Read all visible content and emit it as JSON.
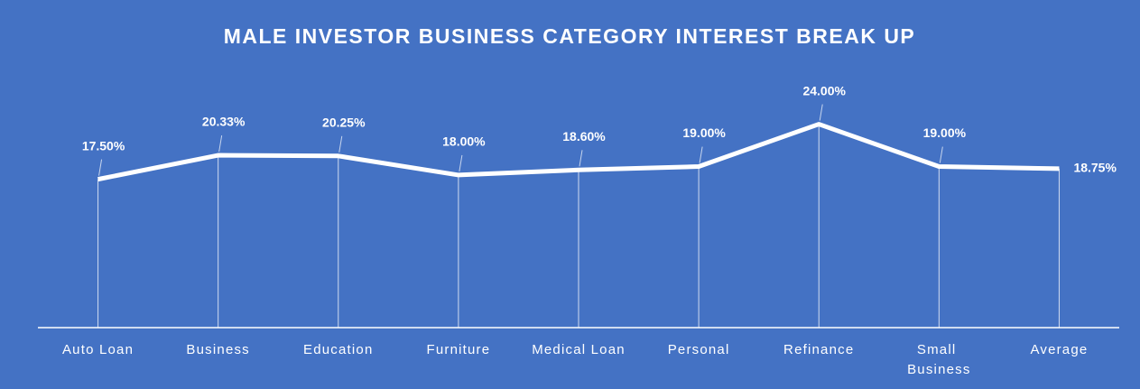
{
  "chart_data": {
    "type": "line",
    "title": "MALE INVESTOR BUSINESS CATEGORY INTEREST BREAK UP",
    "categories": [
      "Auto Loan",
      "Business",
      "Education",
      "Furniture",
      "Medical Loan",
      "Personal",
      "Refinance",
      "Small Business",
      "Average"
    ],
    "values": [
      17.5,
      20.33,
      20.25,
      18.0,
      18.6,
      19.0,
      24.0,
      19.0,
      18.75
    ],
    "value_labels": [
      "17.50%",
      "20.33%",
      "20.25%",
      "18.00%",
      "18.60%",
      "19.00%",
      "24.00%",
      "19.00%",
      "18.75%"
    ],
    "color": "#ffffff",
    "ylim": [
      0,
      28
    ]
  }
}
